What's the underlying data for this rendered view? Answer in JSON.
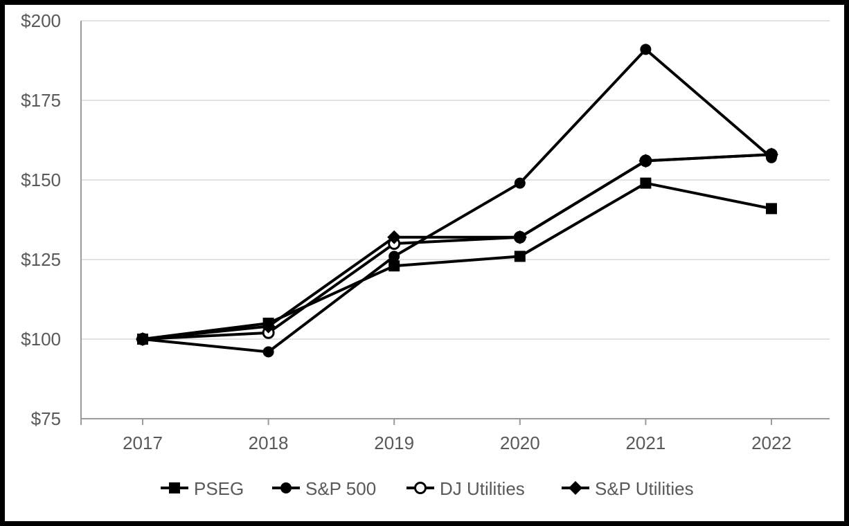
{
  "chart_data": {
    "type": "line",
    "title": "",
    "xlabel": "",
    "ylabel": "",
    "categories": [
      "2017",
      "2018",
      "2019",
      "2020",
      "2021",
      "2022"
    ],
    "series": [
      {
        "name": "PSEG",
        "marker": "filled-square",
        "values": [
          100,
          105,
          123,
          126,
          149,
          141
        ]
      },
      {
        "name": "S&P 500",
        "marker": "filled-circle",
        "values": [
          100,
          96,
          126,
          149,
          191,
          157
        ]
      },
      {
        "name": "DJ Utilities",
        "marker": "open-circle",
        "values": [
          100,
          102,
          130,
          132,
          156,
          158
        ]
      },
      {
        "name": "S&P Utilities",
        "marker": "filled-diamond",
        "values": [
          100,
          104,
          132,
          132,
          156,
          158
        ]
      }
    ],
    "ylim": [
      75,
      200
    ],
    "y_tick_values": [
      75,
      100,
      125,
      150,
      175,
      200
    ],
    "y_tick_labels": [
      "$75",
      "$100",
      "$125",
      "$150",
      "$175",
      "$200"
    ],
    "grid": true,
    "legend_position": "bottom",
    "colors": {
      "series_color": "#000000",
      "grid_color": "#e2e2e2",
      "axis_color": "#9a9a9a",
      "label_color": "#595959",
      "frame_color": "#000000",
      "background": "#ffffff",
      "open_marker_fill": "#ffffff"
    }
  }
}
